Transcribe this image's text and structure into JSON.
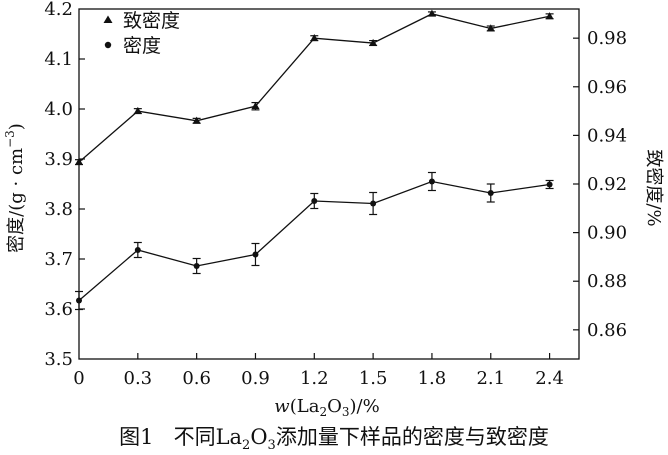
{
  "chart_data": {
    "type": "line",
    "x": [
      0,
      0.3,
      0.6,
      0.9,
      1.2,
      1.5,
      1.8,
      2.1,
      2.4
    ],
    "x_ticks": [
      "0",
      "0.3",
      "0.6",
      "0.9",
      "1.2",
      "1.5",
      "1.8",
      "2.1",
      "2.4"
    ],
    "xlim": [
      0,
      2.55
    ],
    "xlabel_prefix": "w",
    "xlabel_open": "(La",
    "xlabel_sub1": "2",
    "xlabel_mid": "O",
    "xlabel_sub2": "3",
    "xlabel_close": ")/%",
    "ylabel_left": "密度/(g · cm",
    "ylabel_left_sup": "−3",
    "ylabel_left_close": ")",
    "ylim_left": [
      3.5,
      4.2
    ],
    "yticks_left": [
      "3.5",
      "3.6",
      "3.7",
      "3.8",
      "3.9",
      "4.0",
      "4.1",
      "4.2"
    ],
    "ylabel_right": "致密度/%",
    "ylim_right": [
      0.848,
      0.992
    ],
    "yticks_right": [
      0.86,
      0.88,
      0.9,
      0.92,
      0.94,
      0.96,
      0.98
    ],
    "yticks_right_labels": [
      "0.86",
      "0.88",
      "0.90",
      "0.92",
      "0.94",
      "0.96",
      "0.98"
    ],
    "series": [
      {
        "name": "致密度",
        "axis": "right",
        "marker": "triangle",
        "values": [
          0.929,
          0.95,
          0.946,
          0.952,
          0.98,
          0.978,
          0.99,
          0.984,
          0.989
        ],
        "errors": [
          0.001,
          0.001,
          0.001,
          0.0015,
          0.001,
          0.001,
          0.0008,
          0.001,
          0.001
        ]
      },
      {
        "name": "密度",
        "axis": "left",
        "marker": "circle",
        "values": [
          3.617,
          3.718,
          3.686,
          3.709,
          3.816,
          3.811,
          3.855,
          3.832,
          3.849
        ],
        "errors": [
          0.018,
          0.015,
          0.015,
          0.022,
          0.015,
          0.022,
          0.018,
          0.018,
          0.008
        ]
      }
    ],
    "legend_position": "top-left"
  },
  "caption": {
    "fig": "图1",
    "prefix": "不同La",
    "sub1": "2",
    "mid": "O",
    "sub2": "3",
    "suffix": "添加量下样品的密度与致密度"
  },
  "colors": {
    "ink": "#111111"
  }
}
